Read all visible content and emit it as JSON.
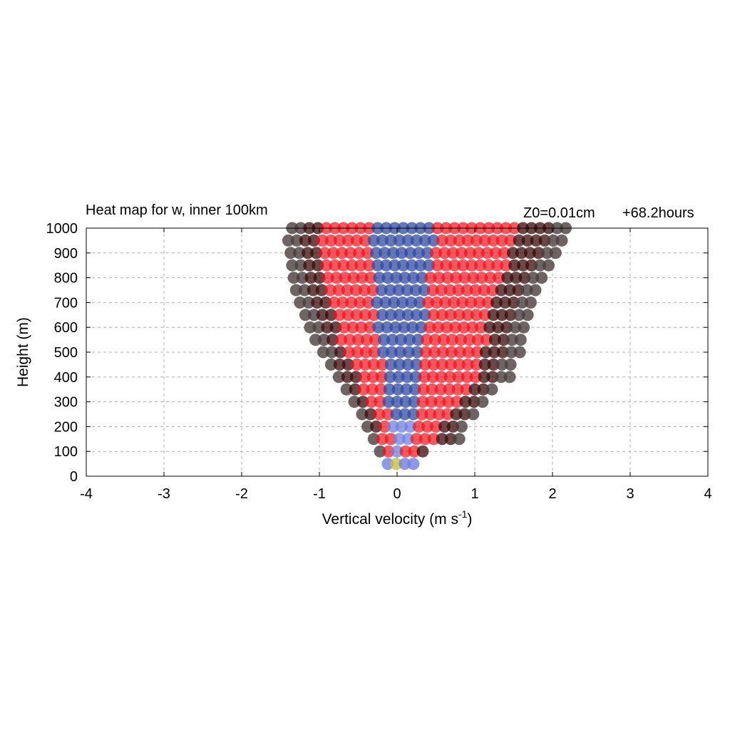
{
  "chart_data": {
    "type": "scatter",
    "title": "Heat map for w, inner 100km",
    "subtitle_left": "Z0=0.01cm",
    "subtitle_right": "+68.2hours",
    "xlabel": "Vertical velocity (m s",
    "xlabel_sup": "-1",
    "xlabel_end": ")",
    "ylabel": "Height (m)",
    "xlim": [
      -4,
      4
    ],
    "ylim": [
      0,
      1000
    ],
    "x_ticks": [
      "-4",
      "-3",
      "-2",
      "-1",
      "0",
      "1",
      "2",
      "3",
      "4"
    ],
    "y_ticks": [
      "0",
      "100",
      "200",
      "300",
      "400",
      "500",
      "600",
      "700",
      "800",
      "900",
      "1000"
    ],
    "grid": true,
    "colors": {
      "outer": "#4a3d3d",
      "dark": "#3a0a0a",
      "red": "#f0101a",
      "blue": "#304aa0",
      "light_blue": "#7080e0",
      "yellow": "#c8c040"
    },
    "height_levels": [
      50,
      100,
      150,
      200,
      250,
      300,
      350,
      400,
      450,
      500,
      550,
      600,
      650,
      700,
      750,
      800,
      850,
      900,
      950,
      1000
    ],
    "spread_min": [
      -0.12,
      -0.22,
      -0.3,
      -0.38,
      -0.45,
      -0.55,
      -0.65,
      -0.75,
      -0.85,
      -0.95,
      -1.05,
      -1.12,
      -1.18,
      -1.25,
      -1.3,
      -1.33,
      -1.35,
      -1.37,
      -1.4,
      -1.35
    ],
    "spread_max": [
      0.22,
      0.42,
      0.8,
      0.85,
      1.0,
      1.15,
      1.3,
      1.45,
      1.5,
      1.6,
      1.65,
      1.7,
      1.72,
      1.75,
      1.8,
      1.9,
      2.05,
      2.1,
      2.2,
      2.25
    ]
  }
}
